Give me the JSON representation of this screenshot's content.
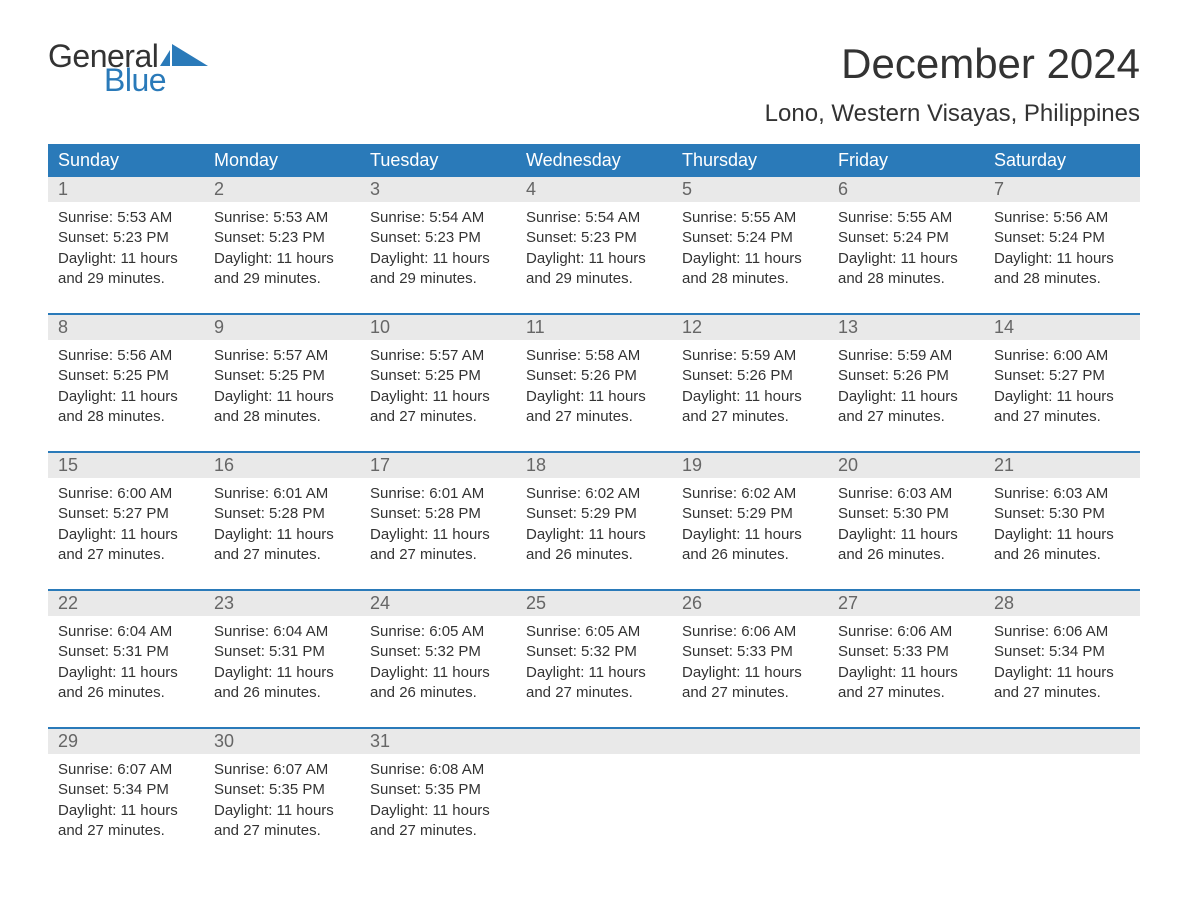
{
  "logo": {
    "word1": "General",
    "word2": "Blue",
    "flag_color": "#2a7ab9"
  },
  "title": "December 2024",
  "location": "Lono, Western Visayas, Philippines",
  "colors": {
    "header_bg": "#2a7ab9",
    "daynum_bg": "#e9e9e9",
    "week_border": "#2a7ab9",
    "text": "#333333",
    "muted": "#666666",
    "white": "#ffffff"
  },
  "typography": {
    "title_fontsize": 42,
    "location_fontsize": 24,
    "dayheader_fontsize": 18,
    "daynum_fontsize": 18,
    "body_fontsize": 15
  },
  "layout": {
    "columns": 7,
    "weeks": 5
  },
  "day_names": [
    "Sunday",
    "Monday",
    "Tuesday",
    "Wednesday",
    "Thursday",
    "Friday",
    "Saturday"
  ],
  "labels": {
    "sunrise": "Sunrise:",
    "sunset": "Sunset:",
    "daylight": "Daylight:"
  },
  "days": [
    {
      "n": 1,
      "sunrise": "5:53 AM",
      "sunset": "5:23 PM",
      "daylight": "11 hours and 29 minutes."
    },
    {
      "n": 2,
      "sunrise": "5:53 AM",
      "sunset": "5:23 PM",
      "daylight": "11 hours and 29 minutes."
    },
    {
      "n": 3,
      "sunrise": "5:54 AM",
      "sunset": "5:23 PM",
      "daylight": "11 hours and 29 minutes."
    },
    {
      "n": 4,
      "sunrise": "5:54 AM",
      "sunset": "5:23 PM",
      "daylight": "11 hours and 29 minutes."
    },
    {
      "n": 5,
      "sunrise": "5:55 AM",
      "sunset": "5:24 PM",
      "daylight": "11 hours and 28 minutes."
    },
    {
      "n": 6,
      "sunrise": "5:55 AM",
      "sunset": "5:24 PM",
      "daylight": "11 hours and 28 minutes."
    },
    {
      "n": 7,
      "sunrise": "5:56 AM",
      "sunset": "5:24 PM",
      "daylight": "11 hours and 28 minutes."
    },
    {
      "n": 8,
      "sunrise": "5:56 AM",
      "sunset": "5:25 PM",
      "daylight": "11 hours and 28 minutes."
    },
    {
      "n": 9,
      "sunrise": "5:57 AM",
      "sunset": "5:25 PM",
      "daylight": "11 hours and 28 minutes."
    },
    {
      "n": 10,
      "sunrise": "5:57 AM",
      "sunset": "5:25 PM",
      "daylight": "11 hours and 27 minutes."
    },
    {
      "n": 11,
      "sunrise": "5:58 AM",
      "sunset": "5:26 PM",
      "daylight": "11 hours and 27 minutes."
    },
    {
      "n": 12,
      "sunrise": "5:59 AM",
      "sunset": "5:26 PM",
      "daylight": "11 hours and 27 minutes."
    },
    {
      "n": 13,
      "sunrise": "5:59 AM",
      "sunset": "5:26 PM",
      "daylight": "11 hours and 27 minutes."
    },
    {
      "n": 14,
      "sunrise": "6:00 AM",
      "sunset": "5:27 PM",
      "daylight": "11 hours and 27 minutes."
    },
    {
      "n": 15,
      "sunrise": "6:00 AM",
      "sunset": "5:27 PM",
      "daylight": "11 hours and 27 minutes."
    },
    {
      "n": 16,
      "sunrise": "6:01 AM",
      "sunset": "5:28 PM",
      "daylight": "11 hours and 27 minutes."
    },
    {
      "n": 17,
      "sunrise": "6:01 AM",
      "sunset": "5:28 PM",
      "daylight": "11 hours and 27 minutes."
    },
    {
      "n": 18,
      "sunrise": "6:02 AM",
      "sunset": "5:29 PM",
      "daylight": "11 hours and 26 minutes."
    },
    {
      "n": 19,
      "sunrise": "6:02 AM",
      "sunset": "5:29 PM",
      "daylight": "11 hours and 26 minutes."
    },
    {
      "n": 20,
      "sunrise": "6:03 AM",
      "sunset": "5:30 PM",
      "daylight": "11 hours and 26 minutes."
    },
    {
      "n": 21,
      "sunrise": "6:03 AM",
      "sunset": "5:30 PM",
      "daylight": "11 hours and 26 minutes."
    },
    {
      "n": 22,
      "sunrise": "6:04 AM",
      "sunset": "5:31 PM",
      "daylight": "11 hours and 26 minutes."
    },
    {
      "n": 23,
      "sunrise": "6:04 AM",
      "sunset": "5:31 PM",
      "daylight": "11 hours and 26 minutes."
    },
    {
      "n": 24,
      "sunrise": "6:05 AM",
      "sunset": "5:32 PM",
      "daylight": "11 hours and 26 minutes."
    },
    {
      "n": 25,
      "sunrise": "6:05 AM",
      "sunset": "5:32 PM",
      "daylight": "11 hours and 27 minutes."
    },
    {
      "n": 26,
      "sunrise": "6:06 AM",
      "sunset": "5:33 PM",
      "daylight": "11 hours and 27 minutes."
    },
    {
      "n": 27,
      "sunrise": "6:06 AM",
      "sunset": "5:33 PM",
      "daylight": "11 hours and 27 minutes."
    },
    {
      "n": 28,
      "sunrise": "6:06 AM",
      "sunset": "5:34 PM",
      "daylight": "11 hours and 27 minutes."
    },
    {
      "n": 29,
      "sunrise": "6:07 AM",
      "sunset": "5:34 PM",
      "daylight": "11 hours and 27 minutes."
    },
    {
      "n": 30,
      "sunrise": "6:07 AM",
      "sunset": "5:35 PM",
      "daylight": "11 hours and 27 minutes."
    },
    {
      "n": 31,
      "sunrise": "6:08 AM",
      "sunset": "5:35 PM",
      "daylight": "11 hours and 27 minutes."
    }
  ]
}
